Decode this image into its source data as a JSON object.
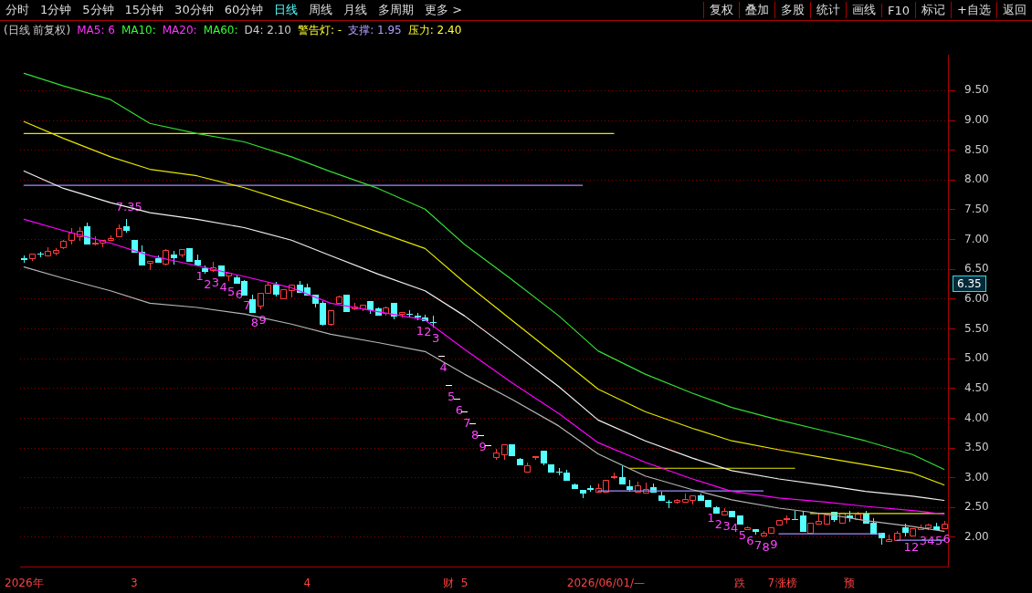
{
  "chart_data": {
    "type": "candlestick",
    "title": "(日线 前复权)",
    "annotations": [
      "分时",
      "1分钟",
      "5分钟",
      "15分钟",
      "30分钟",
      "60分钟",
      "日线",
      "周线",
      "月线",
      "多周期",
      "更多 >",
      "复权",
      "叠加",
      "多股",
      "统计",
      "画线",
      "F10",
      "标记",
      "+自选",
      "返回",
      "MA5: 6",
      "MA10:",
      "MA20:",
      "MA60:",
      "D4: 2.10",
      "警告灯: -",
      "支撑: 1.95",
      "压力: 2.40",
      "6.35"
    ],
    "categories": [
      "2026年",
      null,
      null,
      null,
      null,
      null,
      null,
      null,
      null,
      null,
      null,
      null,
      null,
      null,
      "3",
      null,
      null,
      null,
      null,
      null,
      null,
      null,
      null,
      null,
      null,
      null,
      null,
      null,
      null,
      null,
      null,
      null,
      null,
      null,
      null,
      null,
      "4",
      null,
      null,
      null,
      null,
      null,
      null,
      null,
      null,
      null,
      null,
      null,
      null,
      null,
      null,
      null,
      null,
      null,
      "财",
      null,
      "5",
      null,
      null,
      null,
      null,
      null,
      null,
      null,
      null,
      null,
      null,
      null,
      null,
      null,
      null,
      null,
      null,
      null,
      "2026/06/01/—",
      null,
      null,
      null,
      null,
      null,
      null,
      null,
      null,
      null,
      null,
      null,
      null,
      null,
      null,
      null,
      null,
      "跌",
      null,
      null,
      null,
      "7",
      null,
      "涨榜",
      null,
      null,
      null,
      null,
      null,
      null,
      null,
      "预",
      null,
      null,
      null,
      null,
      null,
      null,
      null,
      null,
      null,
      null,
      null,
      null
    ],
    "ohlc": [
      [
        6.68,
        6.74,
        6.63,
        6.67
      ],
      [
        6.69,
        6.76,
        6.65,
        6.76
      ],
      [
        6.77,
        6.79,
        6.72,
        6.76
      ],
      [
        6.74,
        6.87,
        6.73,
        6.81
      ],
      [
        6.78,
        6.86,
        6.75,
        6.82
      ],
      [
        6.87,
        6.99,
        6.86,
        6.98
      ],
      [
        6.99,
        7.2,
        6.93,
        7.11
      ],
      [
        7.06,
        7.21,
        7.0,
        7.15
      ],
      [
        7.23,
        7.28,
        6.93,
        6.93
      ],
      [
        6.93,
        7.05,
        6.91,
        6.95
      ],
      [
        6.94,
        7.0,
        6.88,
        7.0
      ],
      [
        7.0,
        7.07,
        7.0,
        7.03
      ],
      [
        7.05,
        7.25,
        7.05,
        7.2
      ],
      [
        7.23,
        7.35,
        7.13,
        7.16
      ],
      [
        6.99,
        7.0,
        6.8,
        6.8
      ],
      [
        6.8,
        6.9,
        6.58,
        6.58
      ],
      [
        6.61,
        6.64,
        6.5,
        6.64
      ],
      [
        6.69,
        6.73,
        6.62,
        6.62
      ],
      [
        6.59,
        6.84,
        6.58,
        6.82
      ],
      [
        6.75,
        6.81,
        6.6,
        6.7
      ],
      [
        6.75,
        6.84,
        6.72,
        6.84
      ],
      [
        6.85,
        6.86,
        6.64,
        6.64
      ],
      [
        6.65,
        6.75,
        6.58,
        6.58
      ],
      [
        6.52,
        6.57,
        6.44,
        6.48
      ],
      [
        6.49,
        6.62,
        6.47,
        6.54
      ],
      [
        6.56,
        6.57,
        6.4,
        6.4
      ],
      [
        6.39,
        6.44,
        6.32,
        6.44
      ],
      [
        6.37,
        6.39,
        6.27,
        6.27
      ],
      [
        6.3,
        6.32,
        6.08,
        6.08
      ],
      [
        6.0,
        6.07,
        5.79,
        5.79
      ],
      [
        5.89,
        6.11,
        5.84,
        6.11
      ],
      [
        6.11,
        6.29,
        6.11,
        6.25
      ],
      [
        6.25,
        6.29,
        6.06,
        6.09
      ],
      [
        6.02,
        6.16,
        6.02,
        6.16
      ],
      [
        6.15,
        6.24,
        6.04,
        6.24
      ],
      [
        6.24,
        6.31,
        6.12,
        6.12
      ],
      [
        6.2,
        6.26,
        6.07,
        6.07
      ],
      [
        6.07,
        6.07,
        5.88,
        5.94
      ],
      [
        5.94,
        5.97,
        5.57,
        5.58
      ],
      [
        5.58,
        5.81,
        5.57,
        5.81
      ],
      [
        5.93,
        6.06,
        5.93,
        6.04
      ],
      [
        6.07,
        6.08,
        5.8,
        5.8
      ],
      [
        5.85,
        5.93,
        5.83,
        5.87
      ],
      [
        5.85,
        5.91,
        5.82,
        5.91
      ],
      [
        5.97,
        5.97,
        5.77,
        5.83
      ],
      [
        5.85,
        5.86,
        5.74,
        5.74
      ],
      [
        5.77,
        5.88,
        5.73,
        5.86
      ],
      [
        5.93,
        5.93,
        5.68,
        5.72
      ],
      [
        5.76,
        5.79,
        5.7,
        5.79
      ],
      [
        5.76,
        5.81,
        5.7,
        5.75
      ],
      [
        5.72,
        5.77,
        5.66,
        5.71
      ],
      [
        5.69,
        5.73,
        5.64,
        5.64
      ],
      [
        5.62,
        5.72,
        5.54,
        5.61
      ],
      [
        5.05,
        5.05,
        5.05,
        5.05
      ],
      [
        4.55,
        4.55,
        4.55,
        4.55
      ],
      [
        4.33,
        4.33,
        4.33,
        4.33
      ],
      [
        4.11,
        4.11,
        4.11,
        4.11
      ],
      [
        3.91,
        3.91,
        3.91,
        3.91
      ],
      [
        3.72,
        3.72,
        3.72,
        3.72
      ],
      [
        3.54,
        3.54,
        3.54,
        3.54
      ],
      [
        3.34,
        3.48,
        3.31,
        3.43
      ],
      [
        3.4,
        3.56,
        3.31,
        3.56
      ],
      [
        3.56,
        3.56,
        3.38,
        3.38
      ],
      [
        3.32,
        3.33,
        3.22,
        3.22
      ],
      [
        3.1,
        3.25,
        3.1,
        3.21
      ],
      [
        3.34,
        3.37,
        3.31,
        3.37
      ],
      [
        3.46,
        3.46,
        3.23,
        3.26
      ],
      [
        3.22,
        3.22,
        3.11,
        3.11
      ],
      [
        3.11,
        3.17,
        3.06,
        3.11
      ],
      [
        3.09,
        3.14,
        2.96,
        2.96
      ],
      [
        2.89,
        2.91,
        2.82,
        2.82
      ],
      [
        2.79,
        2.79,
        2.67,
        2.75
      ],
      [
        2.82,
        2.88,
        2.78,
        2.81
      ],
      [
        2.77,
        2.9,
        2.77,
        2.83
      ],
      [
        2.77,
        2.97,
        2.76,
        2.97
      ],
      [
        3.01,
        3.09,
        3.0,
        3.03
      ],
      [
        3.01,
        3.2,
        2.91,
        2.91
      ],
      [
        2.85,
        2.96,
        2.78,
        2.81
      ],
      [
        2.76,
        2.93,
        2.76,
        2.87
      ],
      [
        2.75,
        2.92,
        2.75,
        2.81
      ],
      [
        2.84,
        2.91,
        2.76,
        2.76
      ],
      [
        2.71,
        2.76,
        2.62,
        2.62
      ],
      [
        2.6,
        2.62,
        2.51,
        2.59
      ],
      [
        2.59,
        2.64,
        2.58,
        2.63
      ],
      [
        2.59,
        2.73,
        2.59,
        2.64
      ],
      [
        2.62,
        2.71,
        2.56,
        2.71
      ],
      [
        2.7,
        2.74,
        2.63,
        2.63
      ],
      [
        2.63,
        2.63,
        2.52,
        2.52
      ],
      [
        2.51,
        2.52,
        2.41,
        2.41
      ],
      [
        2.38,
        2.49,
        2.38,
        2.45
      ],
      [
        2.44,
        2.45,
        2.35,
        2.35
      ],
      [
        2.36,
        2.36,
        2.23,
        2.23
      ],
      [
        2.14,
        2.19,
        2.14,
        2.17
      ],
      [
        2.14,
        2.14,
        2.06,
        2.11
      ],
      [
        2.03,
        2.1,
        2.03,
        2.08
      ],
      [
        2.07,
        2.17,
        2.07,
        2.17
      ],
      [
        2.21,
        2.29,
        2.21,
        2.29
      ],
      [
        2.31,
        2.37,
        2.25,
        2.32
      ],
      [
        2.31,
        2.45,
        2.3,
        2.3
      ],
      [
        2.37,
        2.44,
        2.11,
        2.11
      ],
      [
        2.07,
        2.24,
        2.07,
        2.24
      ],
      [
        2.23,
        2.41,
        2.23,
        2.28
      ],
      [
        2.23,
        2.38,
        2.23,
        2.38
      ],
      [
        2.43,
        2.43,
        2.27,
        2.3
      ],
      [
        2.25,
        2.41,
        2.25,
        2.41
      ],
      [
        2.36,
        2.45,
        2.28,
        2.34
      ],
      [
        2.3,
        2.43,
        2.3,
        2.4
      ],
      [
        2.4,
        2.45,
        2.25,
        2.25
      ],
      [
        2.24,
        2.32,
        2.06,
        2.06
      ],
      [
        2.08,
        2.08,
        1.89,
        2.0
      ],
      [
        1.94,
        2.04,
        1.94,
        1.97
      ],
      [
        1.96,
        2.1,
        1.96,
        2.07
      ],
      [
        2.17,
        2.23,
        2.03,
        2.09
      ],
      [
        2.03,
        2.15,
        2.03,
        2.15
      ],
      [
        2.13,
        2.21,
        2.13,
        2.17
      ],
      [
        2.17,
        2.23,
        2.14,
        2.21
      ],
      [
        2.19,
        2.24,
        2.13,
        2.13
      ],
      [
        2.16,
        2.27,
        2.16,
        2.23
      ]
    ],
    "colors": [
      "#54ffff",
      "#ff3c3c",
      "#54ffff",
      "#ff3c3c",
      "#ff3c3c",
      "#ff3c3c",
      "#ff3c3c",
      "#ff3c3c",
      "#54ffff",
      "#ff3c3c",
      "#ff3c3c",
      "#ff3c3c",
      "#ff3c3c",
      "#54ffff",
      "#54ffff",
      "#54ffff",
      "#ff3c3c",
      "#54ffff",
      "#ff3c3c",
      "#54ffff",
      "#ff3c3c",
      "#54ffff",
      "#54ffff",
      "#54ffff",
      "#ff3c3c",
      "#54ffff",
      "#ff3c3c",
      "#54ffff",
      "#54ffff",
      "#54ffff",
      "#ff3c3c",
      "#ff3c3c",
      "#54ffff",
      "#ff3c3c",
      "#ff3c3c",
      "#54ffff",
      "#54ffff",
      "#54ffff",
      "#54ffff",
      "#ff3c3c",
      "#ff3c3c",
      "#54ffff",
      "#ff3c3c",
      "#ff3c3c",
      "#54ffff",
      "#54ffff",
      "#ff3c3c",
      "#54ffff",
      "#ff3c3c",
      "#54ffff",
      "#54ffff",
      "#54ffff",
      "#54ffff",
      "#ffffff",
      "#ffffff",
      "#ffffff",
      "#ffffff",
      "#ffffff",
      "#ffffff",
      "#ffffff",
      "#ff3c3c",
      "#ff3c3c",
      "#54ffff",
      "#54ffff",
      "#ff3c3c",
      "#ff3c3c",
      "#54ffff",
      "#54ffff",
      "#54ffff",
      "#54ffff",
      "#54ffff",
      "#54ffff",
      "#54ffff",
      "#ff3c3c",
      "#ff3c3c",
      "#ff3c3c",
      "#54ffff",
      "#54ffff",
      "#ff3c3c",
      "#ff3c3c",
      "#54ffff",
      "#54ffff",
      "#54ffff",
      "#ff3c3c",
      "#ff3c3c",
      "#ff3c3c",
      "#54ffff",
      "#54ffff",
      "#54ffff",
      "#ff3c3c",
      "#54ffff",
      "#54ffff",
      "#ff3c3c",
      "#54ffff",
      "#ff3c3c",
      "#ff3c3c",
      "#ff3c3c",
      "#ff3c3c",
      "#54ffff",
      "#54ffff",
      "#ff3c3c",
      "#ff3c3c",
      "#ff3c3c",
      "#54ffff",
      "#ff3c3c",
      "#54ffff",
      "#ff3c3c",
      "#54ffff",
      "#54ffff",
      "#54ffff",
      "#ff3c3c",
      "#ff3c3c",
      "#54ffff",
      "#ff3c3c",
      "#ff3c3c",
      "#ff3c3c",
      "#54ffff",
      "#ff3c3c"
    ],
    "value_labels": [
      null,
      null,
      null,
      null,
      null,
      null,
      null,
      null,
      null,
      null,
      null,
      null,
      null,
      "7.35",
      null,
      null,
      null,
      null,
      null,
      null,
      null,
      null,
      "1",
      "2",
      "3",
      "4",
      "5",
      "6",
      "7",
      "8",
      "9",
      null,
      null,
      null,
      null,
      null,
      null,
      null,
      null,
      null,
      null,
      null,
      null,
      null,
      null,
      null,
      null,
      null,
      null,
      null,
      "1",
      "2",
      "3",
      "4",
      "5",
      "6",
      "7",
      "8",
      "9",
      null,
      null,
      null,
      null,
      null,
      null,
      null,
      null,
      null,
      null,
      null,
      null,
      null,
      null,
      null,
      null,
      null,
      null,
      null,
      null,
      null,
      null,
      null,
      null,
      null,
      null,
      null,
      null,
      "1",
      "2",
      "3",
      "4",
      "5",
      "6",
      "7",
      "8",
      "9",
      null,
      null,
      null,
      null,
      null,
      null,
      null,
      null,
      null,
      null,
      null,
      null,
      null,
      null,
      null,
      null,
      "1",
      "2",
      "3",
      "4",
      "5",
      "6"
    ],
    "series": [
      {
        "type": "line",
        "color": "#33dd33",
        "values": [
          9.79,
          null,
          null,
          null,
          null,
          9.58,
          null,
          null,
          null,
          null,
          null,
          9.35,
          null,
          null,
          null,
          null,
          8.95,
          null,
          null,
          null,
          null,
          null,
          8.78,
          null,
          null,
          null,
          null,
          null,
          8.64,
          null,
          null,
          null,
          null,
          null,
          8.39,
          null,
          null,
          null,
          null,
          8.14,
          null,
          null,
          null,
          null,
          null,
          7.86,
          null,
          null,
          null,
          null,
          null,
          7.51,
          null,
          null,
          null,
          null,
          6.92,
          null,
          null,
          null,
          null,
          null,
          6.33,
          null,
          null,
          null,
          null,
          null,
          5.72,
          null,
          null,
          null,
          null,
          5.13,
          null,
          null,
          null,
          null,
          null,
          4.74,
          null,
          null,
          null,
          null,
          null,
          4.42,
          null,
          null,
          null,
          null,
          4.18,
          null,
          null,
          null,
          null,
          null,
          3.97,
          null,
          null,
          null,
          null,
          null,
          3.78,
          null,
          null,
          null,
          null,
          3.62,
          null,
          null,
          null,
          null,
          null,
          3.39,
          null,
          null,
          null,
          3.14
        ]
      },
      {
        "type": "line",
        "color": "#e6e600",
        "values": [
          8.98,
          null,
          null,
          null,
          null,
          8.7,
          null,
          null,
          null,
          null,
          null,
          8.39,
          null,
          null,
          null,
          null,
          8.18,
          null,
          null,
          null,
          null,
          null,
          8.07,
          null,
          null,
          null,
          null,
          null,
          7.87,
          null,
          null,
          null,
          null,
          null,
          7.62,
          null,
          null,
          null,
          null,
          7.41,
          null,
          null,
          null,
          null,
          null,
          7.13,
          null,
          null,
          null,
          null,
          null,
          6.85,
          null,
          null,
          null,
          null,
          6.28,
          null,
          null,
          null,
          null,
          null,
          5.65,
          null,
          null,
          null,
          null,
          null,
          5.02,
          null,
          null,
          null,
          null,
          4.49,
          null,
          null,
          null,
          null,
          null,
          4.11,
          null,
          null,
          null,
          null,
          null,
          3.83,
          null,
          null,
          null,
          null,
          3.62,
          null,
          null,
          null,
          null,
          null,
          3.47,
          null,
          null,
          null,
          null,
          null,
          3.33,
          null,
          null,
          null,
          null,
          3.22,
          null,
          null,
          null,
          null,
          null,
          3.08,
          null,
          null,
          null,
          2.88
        ]
      },
      {
        "type": "line",
        "color": "#f0f0f0",
        "values": [
          8.15,
          null,
          null,
          null,
          null,
          7.86,
          null,
          null,
          null,
          null,
          null,
          7.62,
          null,
          null,
          null,
          null,
          7.45,
          null,
          null,
          null,
          null,
          null,
          7.34,
          null,
          null,
          null,
          null,
          null,
          7.2,
          null,
          null,
          null,
          null,
          null,
          6.99,
          null,
          null,
          null,
          null,
          6.73,
          null,
          null,
          null,
          null,
          null,
          6.42,
          null,
          null,
          null,
          null,
          null,
          6.14,
          null,
          null,
          null,
          null,
          5.72,
          null,
          null,
          null,
          null,
          null,
          5.13,
          null,
          null,
          null,
          null,
          null,
          4.53,
          null,
          null,
          null,
          null,
          3.97,
          null,
          null,
          null,
          null,
          null,
          3.62,
          null,
          null,
          null,
          null,
          null,
          3.33,
          null,
          null,
          null,
          null,
          3.12,
          null,
          null,
          null,
          null,
          null,
          2.98,
          null,
          null,
          null,
          null,
          null,
          2.87,
          null,
          null,
          null,
          null,
          2.77,
          null,
          null,
          null,
          null,
          null,
          2.69,
          null,
          null,
          null,
          2.62
        ]
      },
      {
        "type": "line",
        "color": "#ff00ff",
        "values": [
          7.34,
          null,
          null,
          null,
          null,
          7.15,
          null,
          null,
          null,
          null,
          null,
          6.94,
          null,
          null,
          null,
          null,
          6.73,
          null,
          null,
          null,
          null,
          null,
          6.56,
          null,
          null,
          null,
          null,
          null,
          6.38,
          null,
          null,
          null,
          null,
          null,
          6.19,
          null,
          null,
          null,
          null,
          5.93,
          null,
          null,
          null,
          null,
          null,
          5.79,
          null,
          null,
          null,
          null,
          null,
          5.65,
          null,
          null,
          null,
          null,
          5.16,
          null,
          null,
          null,
          null,
          null,
          4.6,
          null,
          null,
          null,
          null,
          null,
          4.08,
          null,
          null,
          null,
          null,
          3.59,
          null,
          null,
          null,
          null,
          null,
          3.26,
          null,
          null,
          null,
          null,
          null,
          2.98,
          null,
          null,
          null,
          null,
          2.77,
          null,
          null,
          null,
          null,
          null,
          2.66,
          null,
          null,
          null,
          null,
          null,
          2.59,
          null,
          null,
          null,
          null,
          2.52,
          null,
          null,
          null,
          null,
          null,
          2.45,
          null,
          null,
          null,
          2.39
        ]
      },
      {
        "type": "line",
        "color": "#b4b4b4",
        "values": [
          6.54,
          null,
          null,
          null,
          null,
          6.35,
          null,
          null,
          null,
          null,
          null,
          6.14,
          null,
          null,
          null,
          null,
          5.93,
          null,
          null,
          null,
          null,
          null,
          5.86,
          null,
          null,
          null,
          null,
          null,
          5.75,
          null,
          null,
          null,
          null,
          null,
          5.58,
          null,
          null,
          null,
          null,
          5.41,
          null,
          null,
          null,
          null,
          null,
          5.27,
          null,
          null,
          null,
          null,
          null,
          5.12,
          null,
          null,
          null,
          null,
          4.74,
          null,
          null,
          null,
          null,
          null,
          4.32,
          null,
          null,
          null,
          null,
          null,
          3.87,
          null,
          null,
          null,
          null,
          3.4,
          null,
          null,
          null,
          null,
          null,
          3.03,
          null,
          null,
          null,
          null,
          null,
          2.8,
          null,
          null,
          null,
          null,
          2.63,
          null,
          null,
          null,
          null,
          null,
          2.49,
          null,
          null,
          null,
          null,
          null,
          2.39,
          null,
          null,
          null,
          null,
          2.28,
          null,
          null,
          null,
          null,
          null,
          2.18,
          null,
          null,
          null,
          2.1
        ]
      },
      {
        "type": "line",
        "color": "#e6e600",
        "values": [
          8.78,
          null,
          null,
          null,
          null,
          null,
          null,
          null,
          null,
          null,
          null,
          null,
          null,
          null,
          null,
          null,
          null,
          null,
          null,
          null,
          null,
          null,
          null,
          null,
          null,
          null,
          null,
          null,
          null,
          null,
          null,
          null,
          null,
          null,
          null,
          null,
          null,
          null,
          null,
          null,
          null,
          null,
          null,
          null,
          null,
          null,
          null,
          null,
          null,
          null,
          null,
          null,
          null,
          null,
          null,
          null,
          null,
          null,
          null,
          null,
          null,
          null,
          null,
          null,
          null,
          null,
          null,
          null,
          null,
          null,
          null,
          null,
          null,
          null,
          null,
          8.78,
          null,
          null,
          null,
          null,
          null,
          null,
          null,
          null,
          null,
          null,
          null,
          null,
          null,
          null,
          null,
          null,
          null,
          null,
          null,
          null,
          null,
          null,
          null,
          null,
          null,
          null,
          null,
          null,
          null,
          null,
          null,
          null,
          null,
          null,
          null,
          null,
          null,
          null,
          null,
          null,
          null,
          null
        ]
      },
      {
        "type": "line",
        "color": "#a08cff",
        "values": [
          7.91,
          null,
          null,
          null,
          null,
          null,
          null,
          null,
          null,
          null,
          null,
          null,
          null,
          null,
          null,
          null,
          null,
          null,
          null,
          null,
          null,
          null,
          null,
          null,
          null,
          null,
          null,
          null,
          null,
          null,
          null,
          null,
          null,
          null,
          null,
          null,
          null,
          null,
          null,
          null,
          null,
          null,
          null,
          null,
          null,
          null,
          null,
          null,
          null,
          null,
          null,
          null,
          null,
          null,
          null,
          null,
          null,
          null,
          null,
          null,
          null,
          null,
          null,
          null,
          null,
          null,
          null,
          null,
          null,
          null,
          null,
          7.91,
          null,
          null,
          null,
          null,
          null,
          null,
          null,
          null,
          null,
          null,
          null,
          null,
          null,
          null,
          null,
          null,
          null,
          null,
          null,
          null,
          null,
          null,
          null,
          null,
          null,
          null,
          null,
          null,
          null,
          null,
          null,
          null,
          null,
          null,
          null,
          null,
          null,
          null,
          null,
          null,
          null,
          null,
          null,
          null,
          null,
          null
        ]
      },
      {
        "type": "line",
        "color": "#e6e600",
        "values": [
          null,
          null,
          null,
          null,
          null,
          null,
          null,
          null,
          null,
          null,
          null,
          null,
          null,
          null,
          null,
          null,
          null,
          null,
          null,
          null,
          null,
          null,
          null,
          null,
          null,
          null,
          null,
          null,
          null,
          null,
          null,
          null,
          null,
          null,
          null,
          null,
          null,
          null,
          null,
          null,
          null,
          null,
          null,
          null,
          null,
          null,
          null,
          null,
          null,
          null,
          null,
          null,
          null,
          null,
          null,
          null,
          null,
          null,
          null,
          null,
          null,
          null,
          null,
          null,
          null,
          null,
          null,
          null,
          null,
          null,
          null,
          null,
          null,
          null,
          null,
          null,
          null,
          3.16,
          null,
          null,
          null,
          null,
          null,
          null,
          null,
          null,
          null,
          null,
          null,
          null,
          null,
          null,
          null,
          null,
          null,
          null,
          null,
          null,
          3.16,
          null,
          null,
          null,
          null,
          null,
          null,
          null,
          null,
          null,
          null,
          null,
          null,
          null,
          null,
          null,
          null,
          null,
          null,
          null
        ]
      },
      {
        "type": "line",
        "color": "#a08cff",
        "values": [
          null,
          null,
          null,
          null,
          null,
          null,
          null,
          null,
          null,
          null,
          null,
          null,
          null,
          null,
          null,
          null,
          null,
          null,
          null,
          null,
          null,
          null,
          null,
          null,
          null,
          null,
          null,
          null,
          null,
          null,
          null,
          null,
          null,
          null,
          null,
          null,
          null,
          null,
          null,
          null,
          null,
          null,
          null,
          null,
          null,
          null,
          null,
          null,
          null,
          null,
          null,
          null,
          null,
          null,
          null,
          null,
          null,
          null,
          null,
          null,
          null,
          null,
          null,
          null,
          null,
          null,
          null,
          null,
          null,
          null,
          null,
          null,
          null,
          2.78,
          null,
          null,
          null,
          null,
          null,
          null,
          null,
          null,
          null,
          null,
          null,
          null,
          null,
          null,
          null,
          null,
          null,
          null,
          null,
          null,
          2.78,
          null,
          null,
          null,
          null,
          null,
          null,
          null,
          null,
          null,
          null,
          null,
          null,
          null,
          null,
          null,
          null,
          null,
          null,
          null,
          null,
          null,
          null,
          null
        ]
      },
      {
        "type": "line",
        "color": "#e6e600",
        "values": [
          null,
          null,
          null,
          null,
          null,
          null,
          null,
          null,
          null,
          null,
          null,
          null,
          null,
          null,
          null,
          null,
          null,
          null,
          null,
          null,
          null,
          null,
          null,
          null,
          null,
          null,
          null,
          null,
          null,
          null,
          null,
          null,
          null,
          null,
          null,
          null,
          null,
          null,
          null,
          null,
          null,
          null,
          null,
          null,
          null,
          null,
          null,
          null,
          null,
          null,
          null,
          null,
          null,
          null,
          null,
          null,
          null,
          null,
          null,
          null,
          null,
          null,
          null,
          null,
          null,
          null,
          null,
          null,
          null,
          null,
          null,
          null,
          null,
          null,
          null,
          null,
          null,
          null,
          null,
          null,
          null,
          null,
          null,
          null,
          null,
          null,
          null,
          null,
          null,
          null,
          null,
          null,
          null,
          null,
          null,
          null,
          null,
          null,
          null,
          null,
          2.4,
          null,
          null,
          null,
          null,
          null,
          null,
          null,
          null,
          null,
          null,
          null,
          null,
          null,
          null,
          null,
          null,
          2.4
        ]
      },
      {
        "type": "line",
        "color": "#a08cff",
        "values": [
          null,
          null,
          null,
          null,
          null,
          null,
          null,
          null,
          null,
          null,
          null,
          null,
          null,
          null,
          null,
          null,
          null,
          null,
          null,
          null,
          null,
          null,
          null,
          null,
          null,
          null,
          null,
          null,
          null,
          null,
          null,
          null,
          null,
          null,
          null,
          null,
          null,
          null,
          null,
          null,
          null,
          null,
          null,
          null,
          null,
          null,
          null,
          null,
          null,
          null,
          null,
          null,
          null,
          null,
          null,
          null,
          null,
          null,
          null,
          null,
          null,
          null,
          null,
          null,
          null,
          null,
          null,
          null,
          null,
          null,
          null,
          null,
          null,
          null,
          null,
          null,
          null,
          null,
          null,
          null,
          null,
          null,
          null,
          null,
          null,
          null,
          null,
          null,
          null,
          null,
          null,
          null,
          null,
          null,
          null,
          null,
          2.06,
          null,
          null,
          null,
          null,
          null,
          null,
          null,
          null,
          null,
          null,
          null,
          null,
          2.06,
          null,
          null,
          null,
          null,
          null,
          null,
          null,
          null
        ]
      },
      {
        "type": "line",
        "color": "#a08cff",
        "values": [
          null,
          null,
          null,
          null,
          null,
          null,
          null,
          null,
          null,
          null,
          null,
          null,
          null,
          null,
          null,
          null,
          null,
          null,
          null,
          null,
          null,
          null,
          null,
          null,
          null,
          null,
          null,
          null,
          null,
          null,
          null,
          null,
          null,
          null,
          null,
          null,
          null,
          null,
          null,
          null,
          null,
          null,
          null,
          null,
          null,
          null,
          null,
          null,
          null,
          null,
          null,
          null,
          null,
          null,
          null,
          null,
          null,
          null,
          null,
          null,
          null,
          null,
          null,
          null,
          null,
          null,
          null,
          null,
          null,
          null,
          null,
          null,
          null,
          null,
          null,
          null,
          null,
          null,
          null,
          null,
          null,
          null,
          null,
          null,
          null,
          null,
          null,
          null,
          null,
          null,
          null,
          null,
          null,
          null,
          null,
          null,
          null,
          null,
          null,
          null,
          null,
          null,
          null,
          null,
          null,
          null,
          null,
          null,
          null,
          null,
          null,
          1.95,
          null,
          null,
          null,
          null,
          null,
          1.95
        ]
      }
    ],
    "ylim": [
      1.5,
      10.1
    ],
    "yticks": [
      {
        "value": 2,
        "label": "2.00"
      },
      {
        "value": 2.5,
        "label": "2.50"
      },
      {
        "value": 3,
        "label": "3.00"
      },
      {
        "value": 3.5,
        "label": "3.50"
      },
      {
        "value": 4,
        "label": "4.00"
      },
      {
        "value": 4.5,
        "label": "4.50"
      },
      {
        "value": 5,
        "label": "5.00"
      },
      {
        "value": 5.5,
        "label": "5.50"
      },
      {
        "value": 6,
        "label": "6.00"
      },
      {
        "value": 6.5,
        "label": "6.50"
      },
      {
        "value": 7,
        "label": "7.00"
      },
      {
        "value": 7.5,
        "label": "7.50"
      },
      {
        "value": 8,
        "label": "8.00"
      },
      {
        "value": 8.5,
        "label": "8.50"
      },
      {
        "value": 9,
        "label": "9.00"
      },
      {
        "value": 9.5,
        "label": "9.50"
      }
    ],
    "grid": "y",
    "legend": false,
    "marker": "none",
    "line_style": "solid"
  }
}
